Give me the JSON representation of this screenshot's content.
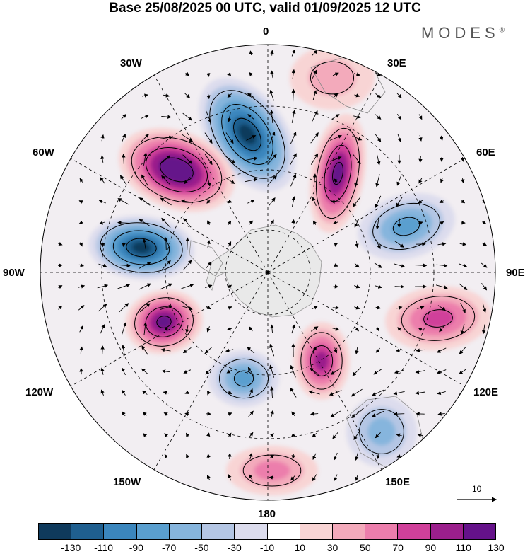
{
  "title": "Base 25/08/2025 00 UTC, valid 01/09/2025 12 UTC",
  "brand": "MODES",
  "brand_mark": "®",
  "longitude_labels": {
    "lon_0": "0",
    "lon_30e": "30E",
    "lon_60e": "60E",
    "lon_90e": "90E",
    "lon_120e": "120E",
    "lon_150e": "150E",
    "lon_180": "180",
    "lon_150w": "150W",
    "lon_120w": "120W",
    "lon_90w": "90W",
    "lon_60w": "60W",
    "lon_30w": "30W"
  },
  "reference_vector": {
    "label": "10"
  },
  "colorbar": {
    "colors": [
      "#0f3a5c",
      "#1f5f8f",
      "#3b86bd",
      "#5a9fcf",
      "#86b5dd",
      "#b4c6e4",
      "#dcdced",
      "#ffffff",
      "#f8d4d4",
      "#f3aabb",
      "#ec7eac",
      "#d0409a",
      "#9b1f8c",
      "#65128a"
    ],
    "tick_labels": [
      "-130",
      "-110",
      "-90",
      "-70",
      "-50",
      "-30",
      "-10",
      "10",
      "30",
      "50",
      "70",
      "90",
      "110",
      "130"
    ]
  },
  "anomaly_centers": [
    {
      "sign": "neg",
      "value": -130
    },
    {
      "sign": "pos",
      "value": 130
    },
    {
      "sign": "pos",
      "value": 110
    },
    {
      "sign": "neg",
      "value": -130
    },
    {
      "sign": "neg",
      "value": -70
    },
    {
      "sign": "pos",
      "value": 70
    },
    {
      "sign": "pos",
      "value": 110
    },
    {
      "sign": "neg",
      "value": -70
    },
    {
      "sign": "pos",
      "value": 90
    },
    {
      "sign": "neg",
      "value": -50
    },
    {
      "sign": "pos",
      "value": 50
    },
    {
      "sign": "pos",
      "value": 30
    }
  ]
}
